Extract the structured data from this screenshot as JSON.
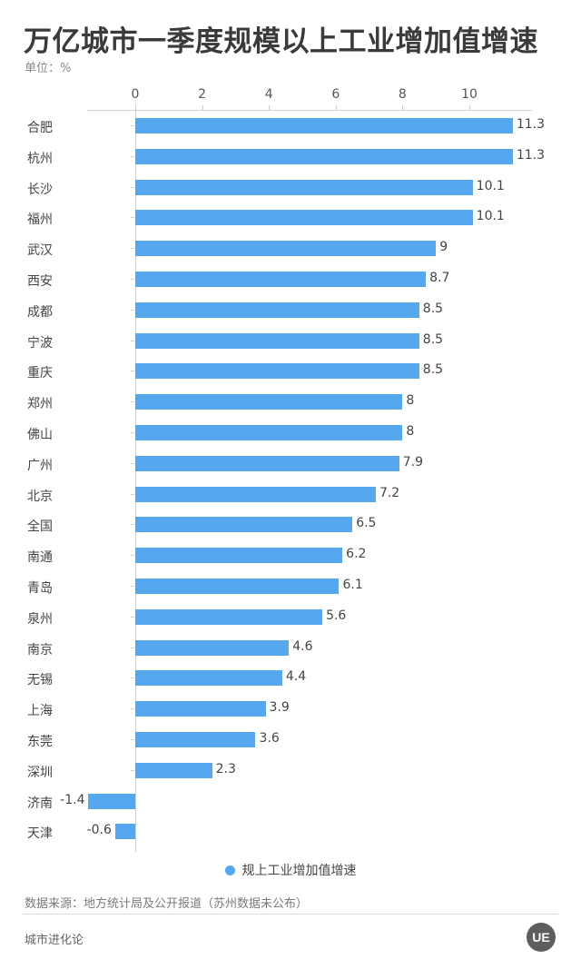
{
  "header": {
    "title": "万亿城市一季度规模以上工业增加值增速",
    "unit": "单位：%"
  },
  "axis": {
    "ticks": [
      "0",
      "2",
      "4",
      "6",
      "8",
      "10"
    ]
  },
  "legend": {
    "label": "规上工业增加值增速",
    "color": "#55a8ee"
  },
  "footer": {
    "source": "数据来源：地方统计局及公开报道（苏州数据未公布）",
    "brand": "城市进化论",
    "logo_text": "UE"
  },
  "rows": [
    {
      "label": "合肥",
      "value": "11.3"
    },
    {
      "label": "杭州",
      "value": "11.3"
    },
    {
      "label": "长沙",
      "value": "10.1"
    },
    {
      "label": "福州",
      "value": "10.1"
    },
    {
      "label": "武汉",
      "value": "9"
    },
    {
      "label": "西安",
      "value": "8.7"
    },
    {
      "label": "成都",
      "value": "8.5"
    },
    {
      "label": "宁波",
      "value": "8.5"
    },
    {
      "label": "重庆",
      "value": "8.5"
    },
    {
      "label": "郑州",
      "value": "8"
    },
    {
      "label": "佛山",
      "value": "8"
    },
    {
      "label": "广州",
      "value": "7.9"
    },
    {
      "label": "北京",
      "value": "7.2"
    },
    {
      "label": "全国",
      "value": "6.5"
    },
    {
      "label": "南通",
      "value": "6.2"
    },
    {
      "label": "青岛",
      "value": "6.1"
    },
    {
      "label": "泉州",
      "value": "5.6"
    },
    {
      "label": "南京",
      "value": "4.6"
    },
    {
      "label": "无锡",
      "value": "4.4"
    },
    {
      "label": "上海",
      "value": "3.9"
    },
    {
      "label": "东莞",
      "value": "3.6"
    },
    {
      "label": "深圳",
      "value": "2.3"
    },
    {
      "label": "济南",
      "value": "-1.4"
    },
    {
      "label": "天津",
      "value": "-0.6"
    }
  ],
  "chart_data": {
    "type": "bar",
    "orientation": "horizontal",
    "title": "万亿城市一季度规模以上工业增加值增速",
    "subtitle": "单位：%",
    "xlabel": "",
    "ylabel": "",
    "categories": [
      "合肥",
      "杭州",
      "长沙",
      "福州",
      "武汉",
      "西安",
      "成都",
      "宁波",
      "重庆",
      "郑州",
      "佛山",
      "广州",
      "北京",
      "全国",
      "南通",
      "青岛",
      "泉州",
      "南京",
      "无锡",
      "上海",
      "东莞",
      "深圳",
      "济南",
      "天津"
    ],
    "series": [
      {
        "name": "规上工业增加值增速",
        "color": "#55a8ee",
        "values": [
          11.3,
          11.3,
          10.1,
          10.1,
          9,
          8.7,
          8.5,
          8.5,
          8.5,
          8,
          8,
          7.9,
          7.2,
          6.5,
          6.2,
          6.1,
          5.6,
          4.6,
          4.4,
          3.9,
          3.6,
          2.3,
          -1.4,
          -0.6
        ]
      }
    ],
    "xticks": [
      0,
      2,
      4,
      6,
      8,
      10
    ],
    "xlim": [
      -1.45,
      11.8
    ],
    "axis_position": "top",
    "grid": false,
    "legend_position": "bottom",
    "data_labels": true,
    "source": "数据来源：地方统计局及公开报道（苏州数据未公布）"
  }
}
